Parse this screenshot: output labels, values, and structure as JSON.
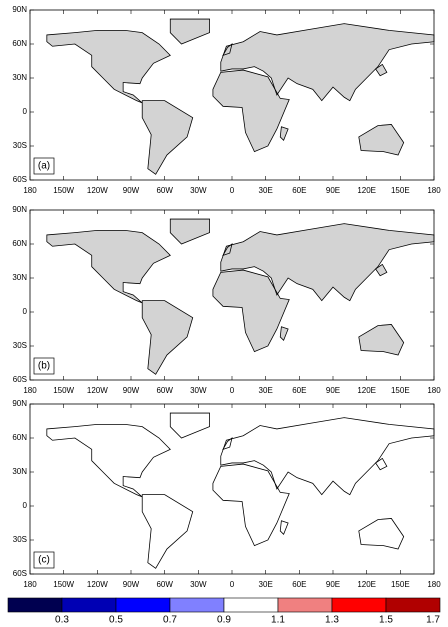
{
  "panels": [
    {
      "label": "(a)"
    },
    {
      "label": "(b)"
    },
    {
      "label": "(c)"
    }
  ],
  "lat_labels": [
    "90N",
    "60N",
    "30N",
    "0",
    "30S",
    "60S"
  ],
  "lon_labels": [
    "180",
    "150W",
    "120W",
    "90W",
    "60W",
    "30W",
    "0",
    "30E",
    "60E",
    "90E",
    "120E",
    "150E",
    "180"
  ],
  "colorbar": {
    "colors": [
      "#000050",
      "#0000b4",
      "#0000ff",
      "#8080ff",
      "#ffffff",
      "#f08080",
      "#ff0000",
      "#b00000"
    ],
    "labels": [
      "0.3",
      "0.5",
      "0.7",
      "0.9",
      "1.1",
      "1.3",
      "1.5",
      "1.7"
    ]
  }
}
